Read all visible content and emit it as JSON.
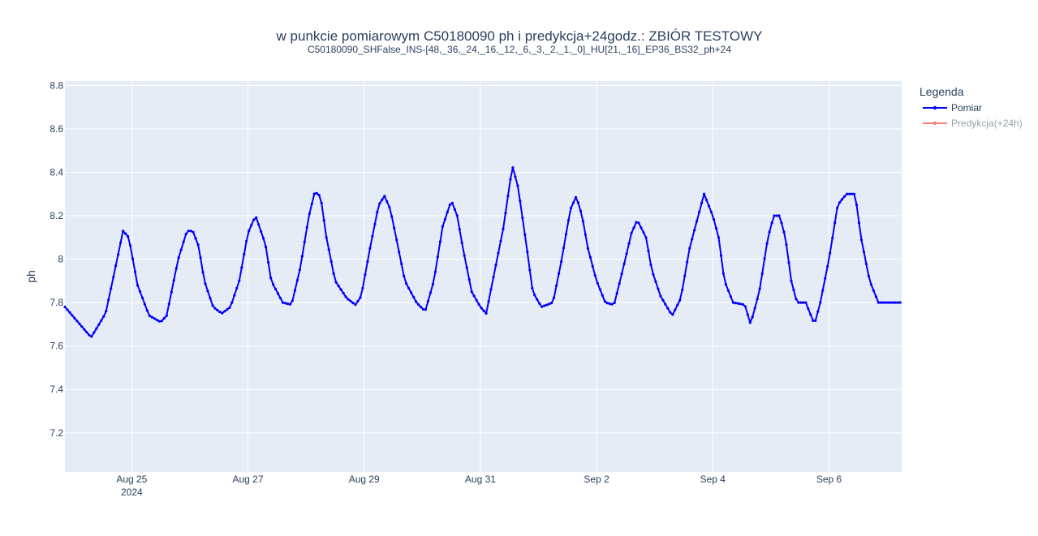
{
  "chart_data": {
    "type": "line",
    "title": "w punkcie pomiarowym C50180090 ph i predykcja+24godz.: ZBIÓR TESTOWY",
    "subtitle": "C50180090_SHFalse_INS-[48,_36,_24,_16,_12,_6,_3,_2,_1,_0]_HU[21,_16]_EP36_BS32_ph+24",
    "xlabel": "",
    "ylabel": "ph",
    "x_tick_labels": [
      "Aug 25",
      "Aug 27",
      "Aug 29",
      "Aug 31",
      "Sep 2",
      "Sep 4",
      "Sep 6"
    ],
    "x_tick_year": "2024",
    "x_range_days": [
      -1.15,
      13.25
    ],
    "x_tick_days": [
      0,
      2,
      4,
      6,
      8,
      10,
      12
    ],
    "x_origin_date": "2024-08-25",
    "y_ticks": [
      7.2,
      7.4,
      7.6,
      7.8,
      8,
      8.2,
      8.4,
      8.6,
      8.8
    ],
    "y_tick_labels": [
      "7.2",
      "7.4",
      "7.6",
      "7.8",
      "8",
      "8.2",
      "8.4",
      "8.6",
      "8.8"
    ],
    "ylim": [
      7.02,
      8.82
    ],
    "grid": true,
    "legend": {
      "title": "Legenda",
      "position": "top-right",
      "entries": [
        {
          "name": "Pomiar",
          "color": "#0000ff",
          "visible": true
        },
        {
          "name": "Predykcja(+24h)",
          "color": "#ff7f7f",
          "visible": false
        }
      ]
    },
    "colors": {
      "plot_bg": "#e5ecf6",
      "grid": "#ffffff",
      "text": "#2a3f5f",
      "series": "#0000ff"
    },
    "series": [
      {
        "name": "Pomiar",
        "keypoints": [
          [
            -1.15,
            7.78
          ],
          [
            -0.7,
            7.64
          ],
          [
            -0.45,
            7.75
          ],
          [
            -0.25,
            8.0
          ],
          [
            -0.15,
            8.13
          ],
          [
            -0.05,
            8.1
          ],
          [
            0.1,
            7.88
          ],
          [
            0.3,
            7.74
          ],
          [
            0.5,
            7.71
          ],
          [
            0.6,
            7.74
          ],
          [
            0.8,
            8.0
          ],
          [
            0.95,
            8.13
          ],
          [
            1.05,
            8.13
          ],
          [
            1.15,
            8.06
          ],
          [
            1.25,
            7.9
          ],
          [
            1.4,
            7.78
          ],
          [
            1.55,
            7.75
          ],
          [
            1.7,
            7.78
          ],
          [
            1.85,
            7.9
          ],
          [
            2.0,
            8.12
          ],
          [
            2.13,
            8.2
          ],
          [
            2.3,
            8.07
          ],
          [
            2.4,
            7.9
          ],
          [
            2.6,
            7.8
          ],
          [
            2.75,
            7.79
          ],
          [
            2.9,
            7.96
          ],
          [
            3.05,
            8.2
          ],
          [
            3.15,
            8.31
          ],
          [
            3.25,
            8.29
          ],
          [
            3.35,
            8.1
          ],
          [
            3.5,
            7.9
          ],
          [
            3.7,
            7.82
          ],
          [
            3.85,
            7.79
          ],
          [
            3.95,
            7.83
          ],
          [
            4.1,
            8.05
          ],
          [
            4.25,
            8.25
          ],
          [
            4.35,
            8.29
          ],
          [
            4.45,
            8.23
          ],
          [
            4.55,
            8.1
          ],
          [
            4.7,
            7.9
          ],
          [
            4.9,
            7.8
          ],
          [
            5.05,
            7.76
          ],
          [
            5.2,
            7.9
          ],
          [
            5.35,
            8.15
          ],
          [
            5.5,
            8.27
          ],
          [
            5.6,
            8.2
          ],
          [
            5.7,
            8.05
          ],
          [
            5.85,
            7.85
          ],
          [
            6.0,
            7.78
          ],
          [
            6.1,
            7.75
          ],
          [
            6.25,
            7.95
          ],
          [
            6.4,
            8.15
          ],
          [
            6.55,
            8.43
          ],
          [
            6.65,
            8.33
          ],
          [
            6.8,
            8.05
          ],
          [
            6.9,
            7.85
          ],
          [
            7.05,
            7.78
          ],
          [
            7.25,
            7.8
          ],
          [
            7.4,
            8.0
          ],
          [
            7.55,
            8.23
          ],
          [
            7.65,
            8.29
          ],
          [
            7.75,
            8.2
          ],
          [
            7.85,
            8.05
          ],
          [
            8.0,
            7.9
          ],
          [
            8.15,
            7.8
          ],
          [
            8.3,
            7.79
          ],
          [
            8.45,
            7.95
          ],
          [
            8.6,
            8.12
          ],
          [
            8.7,
            8.18
          ],
          [
            8.85,
            8.1
          ],
          [
            8.95,
            7.95
          ],
          [
            9.1,
            7.83
          ],
          [
            9.3,
            7.74
          ],
          [
            9.45,
            7.82
          ],
          [
            9.6,
            8.05
          ],
          [
            9.75,
            8.2
          ],
          [
            9.85,
            8.3
          ],
          [
            10.0,
            8.2
          ],
          [
            10.1,
            8.1
          ],
          [
            10.2,
            7.9
          ],
          [
            10.35,
            7.8
          ],
          [
            10.55,
            7.79
          ],
          [
            10.65,
            7.7
          ],
          [
            10.8,
            7.85
          ],
          [
            10.95,
            8.1
          ],
          [
            11.05,
            8.2
          ],
          [
            11.15,
            8.2
          ],
          [
            11.25,
            8.1
          ],
          [
            11.35,
            7.9
          ],
          [
            11.45,
            7.8
          ],
          [
            11.6,
            7.8
          ],
          [
            11.75,
            7.7
          ],
          [
            11.85,
            7.8
          ],
          [
            12.0,
            8.0
          ],
          [
            12.15,
            8.25
          ],
          [
            12.3,
            8.3
          ],
          [
            12.45,
            8.3
          ],
          [
            12.55,
            8.1
          ],
          [
            12.7,
            7.9
          ],
          [
            12.85,
            7.8
          ],
          [
            13.0,
            7.8
          ],
          [
            13.25,
            7.8
          ]
        ]
      },
      {
        "name": "Predykcja(+24h)",
        "keypoints": []
      }
    ]
  }
}
